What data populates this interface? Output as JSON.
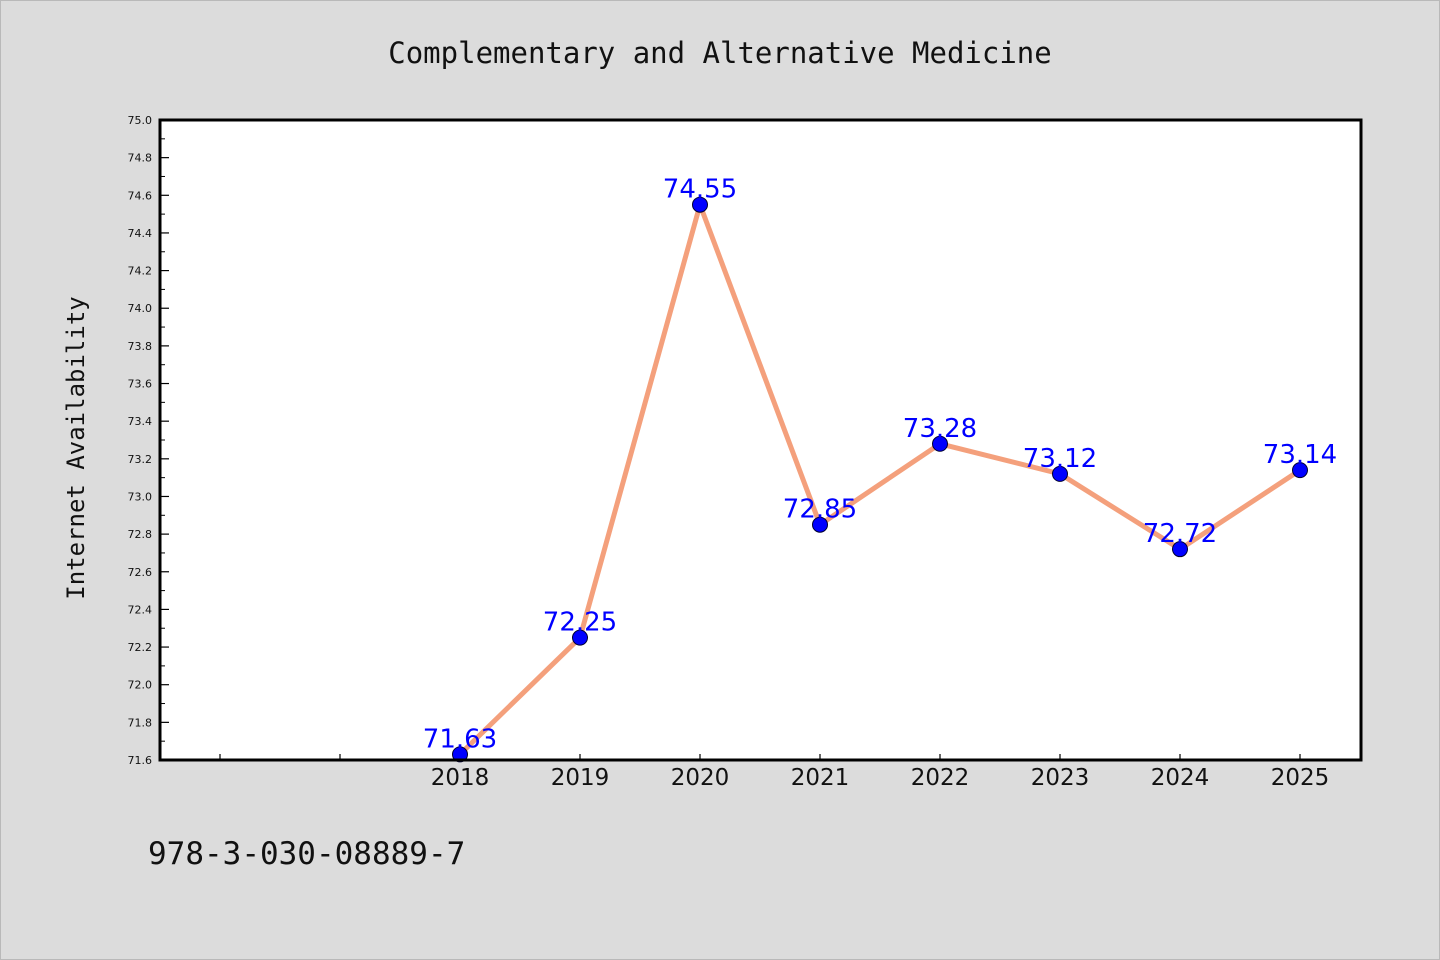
{
  "footer": {
    "code": "978-3-030-08889-7"
  },
  "chart_data": {
    "type": "line",
    "title": "Complementary and Alternative Medicine",
    "xlabel": "",
    "ylabel": "Internet Availability",
    "categories": [
      "",
      "",
      "2018",
      "2019",
      "2020",
      "2021",
      "2022",
      "2023",
      "2024",
      "2025"
    ],
    "series": [
      {
        "x": [
          "2018",
          "2019",
          "2020",
          "2021",
          "2022",
          "2023",
          "2024",
          "2025"
        ],
        "values": [
          71.63,
          72.25,
          74.55,
          72.85,
          73.28,
          73.12,
          72.72,
          73.14
        ],
        "data_labels": [
          "71.63",
          "72.25",
          "74.55",
          "72.85",
          "73.28",
          "73.12",
          "72.72",
          "73.14"
        ]
      }
    ],
    "ylim": [
      71.6,
      75.0
    ],
    "yticks": [
      "71.6",
      "71.8",
      "72.0",
      "72.2",
      "72.4",
      "72.6",
      "72.8",
      "73.0",
      "73.2",
      "73.4",
      "73.6",
      "73.8",
      "74.0",
      "74.2",
      "74.4",
      "74.6",
      "74.8",
      "75.0"
    ],
    "grid": false,
    "legend": "none",
    "colors": {
      "line": "#f4a07c",
      "marker": "#0000ff",
      "data_label": "#0000ff",
      "plot_background": "#ffffff",
      "figure_background": "#dcdcdc"
    }
  }
}
